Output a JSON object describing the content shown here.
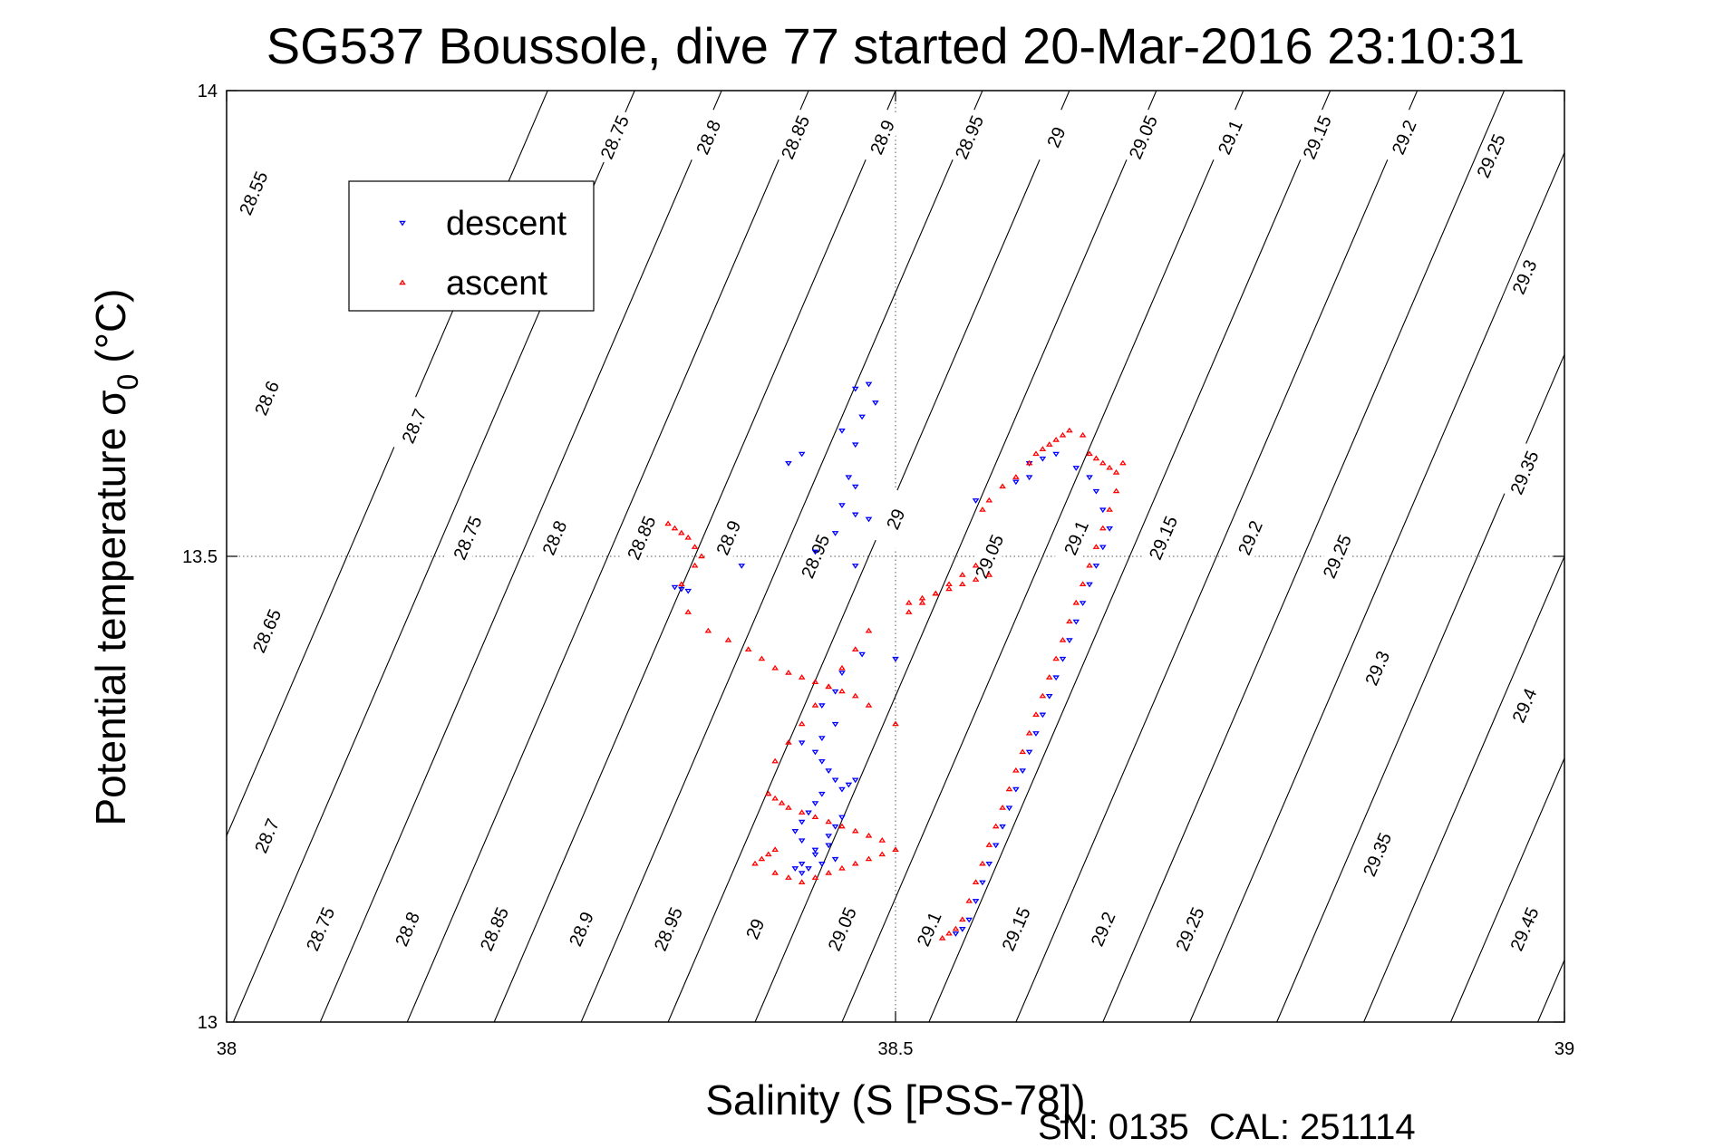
{
  "chart_data": {
    "type": "scatter",
    "title": "SG537 Boussole, dive 77 started 20-Mar-2016 23:10:31",
    "xlabel": "Salinity (S [PSS-78])",
    "ylabel_main": "Potential temperature σ",
    "ylabel_sub": "0",
    "ylabel_unit": "(°C)",
    "xlim": [
      38,
      39
    ],
    "ylim": [
      13,
      14
    ],
    "xticks": [
      38,
      38.5,
      39
    ],
    "xtick_labels": [
      "38",
      "38.5",
      "39"
    ],
    "yticks": [
      13,
      13.5,
      14
    ],
    "ytick_labels": [
      "13",
      "13.5",
      "14"
    ],
    "grid": "dotted at ticks",
    "legend": {
      "placement": "top-left",
      "entries": [
        {
          "name": "descent",
          "color": "#0000ff",
          "marker": "triangle-down"
        },
        {
          "name": "ascent",
          "color": "#ff0000",
          "marker": "triangle-up"
        }
      ]
    },
    "contours": {
      "description": "density isolines",
      "levels": [
        28.55,
        28.6,
        28.65,
        28.7,
        28.75,
        28.8,
        28.85,
        28.9,
        28.95,
        29.0,
        29.05,
        29.1,
        29.15,
        29.2,
        29.25,
        29.3,
        29.35,
        29.4,
        29.45
      ],
      "slope_salinity_per_degC": 0.3,
      "label_positions": [
        {
          "level": 28.55,
          "s": 38.02,
          "t": 13.89
        },
        {
          "level": 28.6,
          "s": 38.03,
          "t": 13.67
        },
        {
          "level": 28.65,
          "s": 38.03,
          "t": 13.42
        },
        {
          "level": 28.7,
          "s": 38.03,
          "t": 13.2
        },
        {
          "level": 28.75,
          "s": 38.07,
          "t": 13.1
        },
        {
          "level": 28.8,
          "s": 38.135,
          "t": 13.1
        },
        {
          "level": 28.85,
          "s": 38.2,
          "t": 13.1
        },
        {
          "level": 28.9,
          "s": 38.265,
          "t": 13.1
        },
        {
          "level": 28.95,
          "s": 38.33,
          "t": 13.1
        },
        {
          "level": 29.0,
          "s": 38.395,
          "t": 13.1
        },
        {
          "level": 29.05,
          "s": 38.46,
          "t": 13.1
        },
        {
          "level": 29.1,
          "s": 38.525,
          "t": 13.1
        },
        {
          "level": 29.15,
          "s": 38.59,
          "t": 13.1
        },
        {
          "level": 29.2,
          "s": 38.655,
          "t": 13.1
        },
        {
          "level": 29.25,
          "s": 38.72,
          "t": 13.1
        },
        {
          "level": 29.3,
          "s": 38.86,
          "t": 13.38
        },
        {
          "level": 29.35,
          "s": 38.86,
          "t": 13.18
        },
        {
          "level": 29.4,
          "s": 38.97,
          "t": 13.34
        },
        {
          "level": 29.45,
          "s": 38.97,
          "t": 13.1
        },
        {
          "level": 28.75,
          "s": 38.29,
          "t": 13.95
        },
        {
          "level": 28.8,
          "s": 38.36,
          "t": 13.95
        },
        {
          "level": 28.85,
          "s": 38.425,
          "t": 13.95
        },
        {
          "level": 28.9,
          "s": 38.49,
          "t": 13.95
        },
        {
          "level": 28.95,
          "s": 38.555,
          "t": 13.95
        },
        {
          "level": 29.0,
          "s": 38.62,
          "t": 13.95
        },
        {
          "level": 29.05,
          "s": 38.685,
          "t": 13.95
        },
        {
          "level": 29.1,
          "s": 38.75,
          "t": 13.95
        },
        {
          "level": 29.15,
          "s": 38.815,
          "t": 13.95
        },
        {
          "level": 29.2,
          "s": 38.88,
          "t": 13.95
        },
        {
          "level": 29.25,
          "s": 38.945,
          "t": 13.93
        },
        {
          "level": 29.3,
          "s": 38.97,
          "t": 13.8
        },
        {
          "level": 29.35,
          "s": 38.97,
          "t": 13.59
        },
        {
          "level": 28.7,
          "s": 38.14,
          "t": 13.64
        },
        {
          "level": 28.75,
          "s": 38.18,
          "t": 13.52
        },
        {
          "level": 28.8,
          "s": 38.245,
          "t": 13.52
        },
        {
          "level": 28.85,
          "s": 38.31,
          "t": 13.52
        },
        {
          "level": 28.9,
          "s": 38.375,
          "t": 13.52
        },
        {
          "level": 28.95,
          "s": 38.44,
          "t": 13.5
        },
        {
          "level": 29.0,
          "s": 38.5,
          "t": 13.54
        },
        {
          "level": 29.05,
          "s": 38.57,
          "t": 13.5
        },
        {
          "level": 29.1,
          "s": 38.635,
          "t": 13.52
        },
        {
          "level": 29.15,
          "s": 38.7,
          "t": 13.52
        },
        {
          "level": 29.2,
          "s": 38.765,
          "t": 13.52
        },
        {
          "level": 29.25,
          "s": 38.83,
          "t": 13.5
        }
      ]
    },
    "series": [
      {
        "name": "descent",
        "color": "#0000ff",
        "x": [
          38.48,
          38.47,
          38.485,
          38.475,
          38.46,
          38.47,
          38.43,
          38.42,
          38.465,
          38.47,
          38.46,
          38.47,
          38.48,
          38.455,
          38.44,
          38.47,
          38.475,
          38.46,
          38.455,
          38.445,
          38.5,
          38.455,
          38.445,
          38.43,
          38.44,
          38.445,
          38.45,
          38.455,
          38.46,
          38.465,
          38.47,
          38.445,
          38.44,
          38.435,
          38.43,
          38.425,
          38.43,
          38.44,
          38.45,
          38.455,
          38.46,
          38.445,
          38.435,
          38.43,
          38.44,
          38.45,
          38.455,
          38.43,
          38.425,
          38.335,
          38.34,
          38.345,
          38.385,
          38.56,
          38.59,
          38.6,
          38.6,
          38.61,
          38.62,
          38.635,
          38.645,
          38.65,
          38.655,
          38.66,
          38.655,
          38.65,
          38.645,
          38.64,
          38.635,
          38.63,
          38.625,
          38.62,
          38.615,
          38.61,
          38.605,
          38.6,
          38.595,
          38.59,
          38.585,
          38.58,
          38.575,
          38.57,
          38.565,
          38.56,
          38.555,
          38.55,
          38.545
        ],
        "y": [
          13.685,
          13.68,
          13.665,
          13.65,
          13.635,
          13.62,
          13.61,
          13.6,
          13.585,
          13.575,
          13.555,
          13.545,
          13.54,
          13.525,
          13.505,
          13.49,
          13.395,
          13.375,
          13.355,
          13.34,
          13.39,
          13.32,
          13.305,
          13.3,
          13.29,
          13.28,
          13.27,
          13.26,
          13.25,
          13.255,
          13.26,
          13.245,
          13.235,
          13.225,
          13.215,
          13.205,
          13.195,
          13.185,
          13.2,
          13.21,
          13.22,
          13.17,
          13.165,
          13.16,
          13.18,
          13.19,
          13.175,
          13.17,
          13.165,
          13.467,
          13.465,
          13.463,
          13.49,
          13.56,
          13.58,
          13.585,
          13.6,
          13.605,
          13.61,
          13.595,
          13.585,
          13.57,
          13.55,
          13.53,
          13.51,
          13.49,
          13.47,
          13.45,
          13.43,
          13.41,
          13.39,
          13.37,
          13.35,
          13.33,
          13.31,
          13.29,
          13.27,
          13.25,
          13.23,
          13.21,
          13.19,
          13.17,
          13.15,
          13.13,
          13.11,
          13.1,
          13.095
        ]
      },
      {
        "name": "ascent",
        "color": "#ff0000",
        "x": [
          38.33,
          38.335,
          38.34,
          38.345,
          38.35,
          38.355,
          38.35,
          38.34,
          38.345,
          38.36,
          38.375,
          38.39,
          38.4,
          38.41,
          38.42,
          38.43,
          38.44,
          38.45,
          38.46,
          38.47,
          38.48,
          38.5,
          38.51,
          38.52,
          38.53,
          38.54,
          38.55,
          38.56,
          38.565,
          38.57,
          38.58,
          38.59,
          38.6,
          38.605,
          38.61,
          38.615,
          38.62,
          38.625,
          38.63,
          38.64,
          38.645,
          38.65,
          38.655,
          38.66,
          38.665,
          38.67,
          38.665,
          38.66,
          38.655,
          38.65,
          38.645,
          38.64,
          38.635,
          38.63,
          38.625,
          38.62,
          38.615,
          38.61,
          38.605,
          38.6,
          38.595,
          38.59,
          38.585,
          38.58,
          38.575,
          38.57,
          38.565,
          38.56,
          38.555,
          38.55,
          38.545,
          38.54,
          38.535,
          38.405,
          38.41,
          38.415,
          38.42,
          38.43,
          38.44,
          38.45,
          38.46,
          38.47,
          38.48,
          38.49,
          38.41,
          38.405,
          38.4,
          38.395,
          38.41,
          38.42,
          38.43,
          38.44,
          38.45,
          38.46,
          38.47,
          38.48,
          38.49,
          38.5,
          38.41,
          38.42,
          38.43,
          38.44,
          38.45,
          38.46,
          38.47,
          38.48,
          38.51,
          38.52,
          38.53,
          38.54,
          38.55,
          38.56,
          38.57
        ],
        "y": [
          13.535,
          13.53,
          13.525,
          13.52,
          13.51,
          13.5,
          13.49,
          13.47,
          13.44,
          13.42,
          13.41,
          13.4,
          13.39,
          13.38,
          13.375,
          13.37,
          13.365,
          13.36,
          13.355,
          13.35,
          13.34,
          13.32,
          13.44,
          13.45,
          13.46,
          13.47,
          13.48,
          13.49,
          13.55,
          13.56,
          13.575,
          13.585,
          13.6,
          13.61,
          13.615,
          13.62,
          13.625,
          13.63,
          13.635,
          13.63,
          13.61,
          13.605,
          13.6,
          13.595,
          13.59,
          13.6,
          13.57,
          13.55,
          13.53,
          13.51,
          13.49,
          13.47,
          13.45,
          13.43,
          13.41,
          13.39,
          13.37,
          13.35,
          13.33,
          13.31,
          13.29,
          13.27,
          13.25,
          13.23,
          13.21,
          13.19,
          13.17,
          13.15,
          13.13,
          13.11,
          13.1,
          13.095,
          13.09,
          13.245,
          13.24,
          13.235,
          13.23,
          13.225,
          13.22,
          13.215,
          13.21,
          13.205,
          13.2,
          13.195,
          13.185,
          13.18,
          13.175,
          13.17,
          13.16,
          13.155,
          13.15,
          13.155,
          13.16,
          13.165,
          13.17,
          13.175,
          13.18,
          13.185,
          13.28,
          13.3,
          13.32,
          13.34,
          13.36,
          13.38,
          13.4,
          13.42,
          13.45,
          13.455,
          13.46,
          13.465,
          13.47,
          13.475,
          13.48
        ]
      }
    ]
  },
  "footer": {
    "serial_calibration": "SN: 0135  CAL: 251114"
  }
}
